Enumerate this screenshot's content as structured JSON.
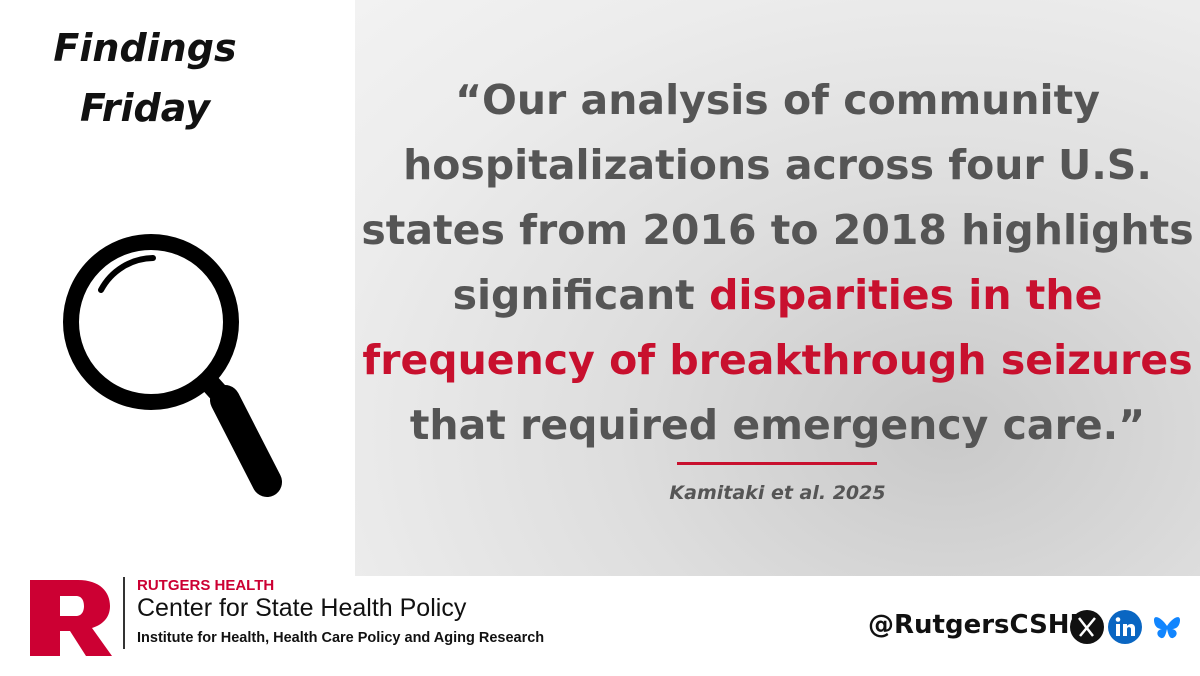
{
  "header": {
    "title_lines": [
      "Findings",
      "Friday"
    ]
  },
  "quote": {
    "lines": [
      [
        {
          "text": "“Our analysis of community",
          "color": "#555555"
        }
      ],
      [
        {
          "text": "hospitalizations across four U.S.",
          "color": "#555555"
        }
      ],
      [
        {
          "text": "states from 2016 to 2018 highlights",
          "color": "#555555"
        }
      ],
      [
        {
          "text": "significant ",
          "color": "#555555"
        },
        {
          "text": "disparities in the",
          "color": "#c8102e"
        }
      ],
      [
        {
          "text": "frequency of breakthrough seizures",
          "color": "#c8102e"
        }
      ],
      [
        {
          "text": "that required emergency care.”",
          "color": "#555555"
        }
      ]
    ],
    "citation": "Kamitaki et al. 2025"
  },
  "footer": {
    "org_top": "RUTGERS HEALTH",
    "org_name": "Center for State Health Policy",
    "org_sub": "Institute for Health, Health Care Policy and Aging Research",
    "handle": "@RutgersCSHP"
  }
}
